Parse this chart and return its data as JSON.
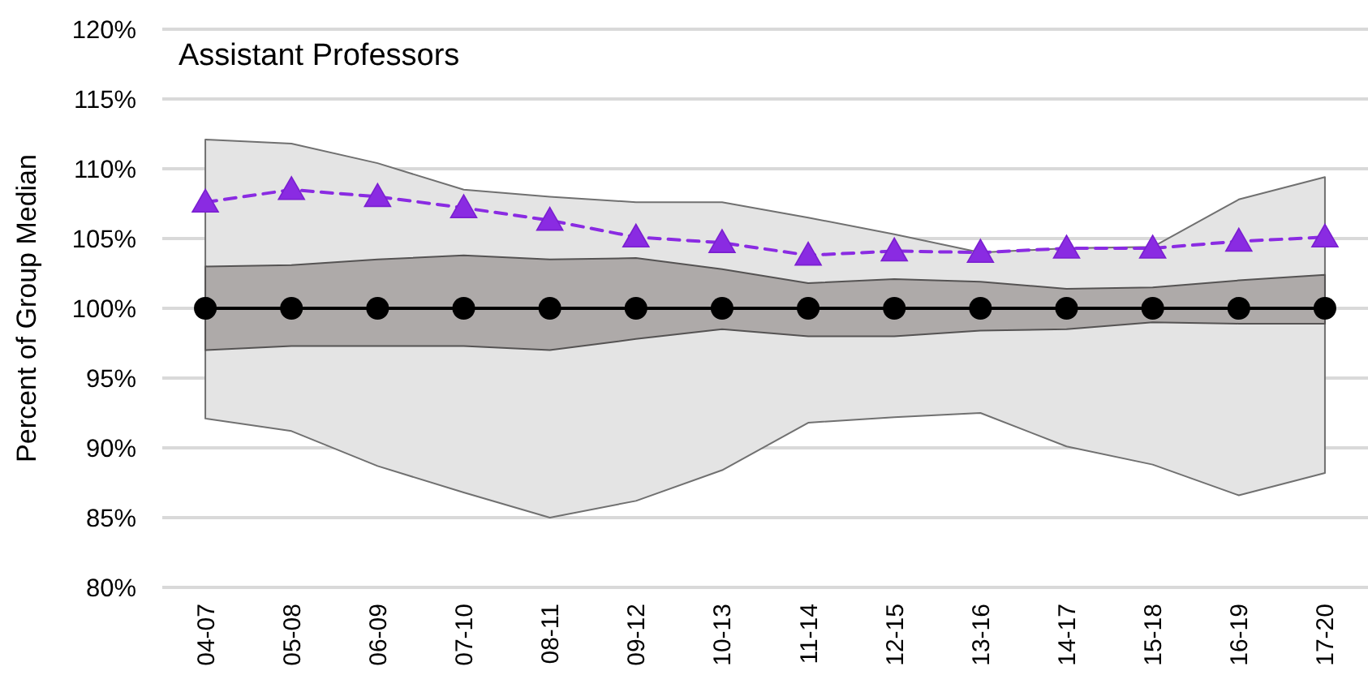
{
  "chart_data": {
    "type": "line",
    "title": "Assistant Professors",
    "ylabel": "Percent of Group Median",
    "categories": [
      "04-07",
      "05-08",
      "06-09",
      "07-10",
      "08-11",
      "09-12",
      "10-13",
      "11-14",
      "12-15",
      "13-16",
      "14-17",
      "15-18",
      "16-19",
      "17-20"
    ],
    "ylim": [
      80,
      120
    ],
    "yticks": [
      {
        "value": 80,
        "label": "80%"
      },
      {
        "value": 85,
        "label": "85%"
      },
      {
        "value": 90,
        "label": "90%"
      },
      {
        "value": 95,
        "label": "95%"
      },
      {
        "value": 100,
        "label": "100%"
      },
      {
        "value": 105,
        "label": "105%"
      },
      {
        "value": 110,
        "label": "110%"
      },
      {
        "value": 115,
        "label": "115%"
      },
      {
        "value": 120,
        "label": "120%"
      }
    ],
    "grid": "y",
    "series": [
      {
        "type": "area",
        "color": "#e4e4e4",
        "values": [
          null,
          null,
          null,
          null,
          null,
          null,
          null,
          null,
          null,
          null,
          null,
          null,
          null,
          null
        ],
        "lower": [
          92.1,
          91.2,
          88.7,
          86.8,
          85.0,
          86.2,
          88.4,
          91.8,
          92.2,
          92.5,
          90.1,
          88.8,
          86.6,
          88.2
        ],
        "upper": [
          112.1,
          111.8,
          110.4,
          108.5,
          108.0,
          107.6,
          107.6,
          106.5,
          105.3,
          104.0,
          104.3,
          104.4,
          107.8,
          109.4
        ]
      },
      {
        "type": "area",
        "color": "#aeaaa9",
        "values": [
          null,
          null,
          null,
          null,
          null,
          null,
          null,
          null,
          null,
          null,
          null,
          null,
          null,
          null
        ],
        "lower": [
          97.0,
          97.3,
          97.3,
          97.3,
          97.0,
          97.8,
          98.5,
          98.0,
          98.0,
          98.4,
          98.5,
          99.0,
          98.9,
          98.9
        ],
        "upper": [
          103.0,
          103.1,
          103.5,
          103.8,
          103.5,
          103.6,
          102.8,
          101.8,
          102.1,
          101.9,
          101.4,
          101.5,
          102.0,
          102.4
        ]
      },
      {
        "color": "#000000",
        "marker": "circle",
        "line_style": "solid",
        "values": [
          100,
          100,
          100,
          100,
          100,
          100,
          100,
          100,
          100,
          100,
          100,
          100,
          100,
          100
        ]
      },
      {
        "color": "#8a2be2",
        "marker": "triangle",
        "line_style": "dashed",
        "values": [
          107.6,
          108.5,
          108.0,
          107.2,
          106.3,
          105.1,
          104.7,
          103.8,
          104.1,
          104.0,
          104.3,
          104.3,
          104.8,
          105.1
        ]
      }
    ]
  }
}
